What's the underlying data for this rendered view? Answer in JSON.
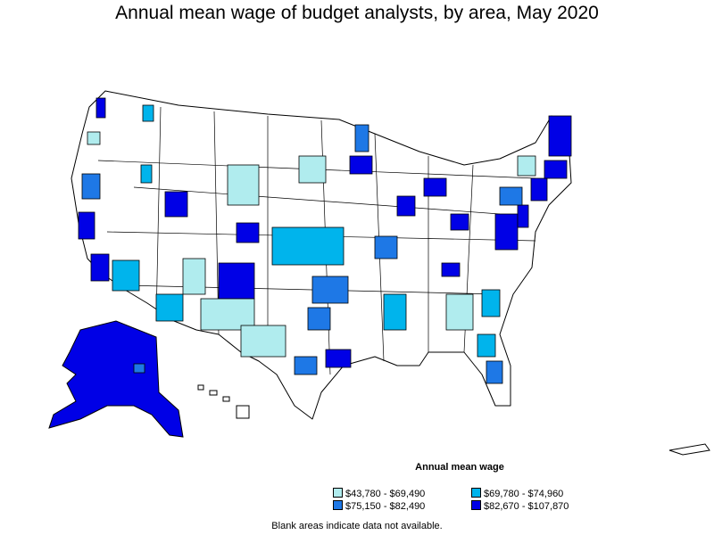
{
  "title": "Annual mean wage of budget analysts, by area, May 2020",
  "legend": {
    "title": "Annual mean wage",
    "items": [
      {
        "label": "$43,780 - $69,490",
        "color": "#b0ecee"
      },
      {
        "label": "$69,780 - $74,960",
        "color": "#00b4ec"
      },
      {
        "label": "$75,150 - $82,490",
        "color": "#1e78e6"
      },
      {
        "label": "$82,670 - $107,870",
        "color": "#0000e6"
      }
    ]
  },
  "note": "Blank areas indicate data not available.",
  "colors": {
    "tier1": "#b0ecee",
    "tier2": "#00b4ec",
    "tier3": "#1e78e6",
    "tier4": "#0000e6",
    "blank": "#ffffff",
    "border": "#000000"
  }
}
